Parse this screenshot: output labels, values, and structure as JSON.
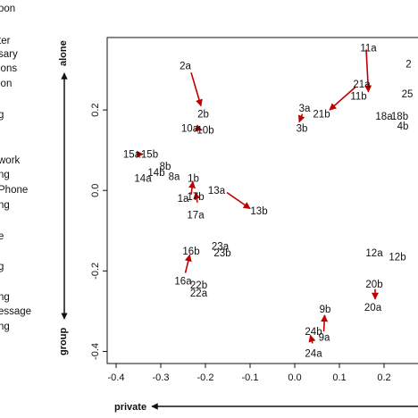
{
  "legend_fragments": [
    "oon",
    "ter",
    "sary",
    "ions",
    "ion",
    "g",
    "work",
    "ng",
    "Phone",
    "ng",
    "e",
    "g",
    "ng",
    "essage",
    "ng"
  ],
  "colors": {
    "arrow": "#c00000",
    "axis": "#111111",
    "text": "#111111"
  },
  "chart_data": {
    "type": "scatter",
    "xlim": [
      -0.42,
      0.3
    ],
    "ylim": [
      -0.43,
      0.38
    ],
    "xticks": [
      "-0.4",
      "-0.3",
      "-0.2",
      "-0.1",
      "0.0",
      "0.1",
      "0.2"
    ],
    "xtick_values": [
      -0.4,
      -0.3,
      -0.2,
      -0.1,
      0.0,
      0.1,
      0.2
    ],
    "yticks": [
      "-0.4",
      "-0.2",
      "0.0",
      "0.2"
    ],
    "ytick_values": [
      -0.4,
      -0.2,
      0.0,
      0.2
    ],
    "dim_labels": {
      "x_left": "private",
      "y_top": "alone",
      "y_bottom": "group"
    },
    "grid": false,
    "points": [
      {
        "label": "2a",
        "x": -0.245,
        "y": 0.31
      },
      {
        "label": "2b",
        "x": -0.205,
        "y": 0.19
      },
      {
        "label": "10a",
        "x": -0.235,
        "y": 0.155
      },
      {
        "label": "10b",
        "x": -0.2,
        "y": 0.15
      },
      {
        "label": "15a",
        "x": -0.365,
        "y": 0.09
      },
      {
        "label": "15b",
        "x": -0.325,
        "y": 0.09
      },
      {
        "label": "8b",
        "x": -0.29,
        "y": 0.06
      },
      {
        "label": "14b",
        "x": -0.31,
        "y": 0.045
      },
      {
        "label": "8a",
        "x": -0.27,
        "y": 0.035
      },
      {
        "label": "14a",
        "x": -0.34,
        "y": 0.03
      },
      {
        "label": "1b",
        "x": -0.227,
        "y": 0.03
      },
      {
        "label": "1a",
        "x": -0.25,
        "y": -0.02
      },
      {
        "label": "17b",
        "x": -0.222,
        "y": -0.015
      },
      {
        "label": "17a",
        "x": -0.222,
        "y": -0.06
      },
      {
        "label": "13a",
        "x": -0.175,
        "y": 0.0
      },
      {
        "label": "13b",
        "x": -0.08,
        "y": -0.05
      },
      {
        "label": "16b",
        "x": -0.232,
        "y": -0.15
      },
      {
        "label": "16a",
        "x": -0.25,
        "y": -0.225
      },
      {
        "label": "22b",
        "x": -0.215,
        "y": -0.235
      },
      {
        "label": "22a",
        "x": -0.215,
        "y": -0.255
      },
      {
        "label": "23a",
        "x": -0.167,
        "y": -0.138
      },
      {
        "label": "23b",
        "x": -0.162,
        "y": -0.155
      },
      {
        "label": "11a",
        "x": 0.165,
        "y": 0.355
      },
      {
        "label": "21a",
        "x": 0.15,
        "y": 0.265
      },
      {
        "label": "11b",
        "x": 0.143,
        "y": 0.235
      },
      {
        "label": "21b",
        "x": 0.06,
        "y": 0.19
      },
      {
        "label": "3a",
        "x": 0.022,
        "y": 0.205
      },
      {
        "label": "3b",
        "x": 0.016,
        "y": 0.155
      },
      {
        "label": "18a",
        "x": 0.2,
        "y": 0.185
      },
      {
        "label": "18b",
        "x": 0.235,
        "y": 0.185
      },
      {
        "label": "4b",
        "x": 0.242,
        "y": 0.16
      },
      {
        "label": "25",
        "x": 0.252,
        "y": 0.24
      },
      {
        "label": "2",
        "x": 0.255,
        "y": 0.315
      },
      {
        "label": "12a",
        "x": 0.178,
        "y": -0.155
      },
      {
        "label": "12b",
        "x": 0.23,
        "y": -0.165
      },
      {
        "label": "20b",
        "x": 0.178,
        "y": -0.232
      },
      {
        "label": "20a",
        "x": 0.175,
        "y": -0.29
      },
      {
        "label": "9b",
        "x": 0.068,
        "y": -0.295
      },
      {
        "label": "9a",
        "x": 0.066,
        "y": -0.365
      },
      {
        "label": "24b",
        "x": 0.042,
        "y": -0.35
      },
      {
        "label": "24a",
        "x": 0.042,
        "y": -0.405
      }
    ],
    "arrows": [
      {
        "from": [
          -0.232,
          0.293
        ],
        "to": [
          -0.21,
          0.21
        ]
      },
      {
        "from": [
          -0.215,
          0.153
        ],
        "to": [
          -0.208,
          0.15
        ]
      },
      {
        "from": [
          -0.35,
          0.09
        ],
        "to": [
          -0.34,
          0.09
        ]
      },
      {
        "from": [
          -0.232,
          -0.01
        ],
        "to": [
          -0.228,
          0.022
        ]
      },
      {
        "from": [
          -0.218,
          -0.03
        ],
        "to": [
          -0.222,
          -0.005
        ]
      },
      {
        "from": [
          -0.152,
          -0.005
        ],
        "to": [
          -0.1,
          -0.045
        ]
      },
      {
        "from": [
          -0.245,
          -0.205
        ],
        "to": [
          -0.235,
          -0.16
        ]
      },
      {
        "from": [
          0.16,
          0.35
        ],
        "to": [
          0.165,
          0.245
        ]
      },
      {
        "from": [
          0.137,
          0.258
        ],
        "to": [
          0.078,
          0.2
        ]
      },
      {
        "from": [
          0.017,
          0.19
        ],
        "to": [
          0.01,
          0.17
        ]
      },
      {
        "from": [
          0.18,
          -0.245
        ],
        "to": [
          0.18,
          -0.27
        ]
      },
      {
        "from": [
          0.065,
          -0.35
        ],
        "to": [
          0.067,
          -0.31
        ]
      },
      {
        "from": [
          0.04,
          -0.38
        ],
        "to": [
          0.035,
          -0.36
        ]
      }
    ]
  }
}
